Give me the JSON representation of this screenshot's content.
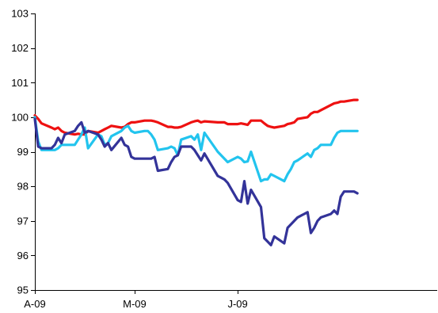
{
  "chart_data": {
    "type": "line",
    "title": "",
    "xlabel": "",
    "ylabel": "",
    "ylim": [
      95,
      103
    ],
    "yticks": [
      95,
      96,
      97,
      98,
      99,
      100,
      101,
      102,
      103
    ],
    "xlim": [
      "2009-04-01",
      "2009-07-31"
    ],
    "x_ticks": [
      {
        "date": "2009-04-01",
        "label": "A-09"
      },
      {
        "date": "2009-05-01",
        "label": "M-09"
      },
      {
        "date": "2009-06-01",
        "label": "J-09"
      }
    ],
    "grid": false,
    "legend": "none",
    "series": [
      {
        "color": "#ee1111",
        "points": [
          [
            "2009-04-01",
            100.05
          ],
          [
            "2009-04-02",
            99.95
          ],
          [
            "2009-04-03",
            99.82
          ],
          [
            "2009-04-06",
            99.7
          ],
          [
            "2009-04-07",
            99.65
          ],
          [
            "2009-04-08",
            99.7
          ],
          [
            "2009-04-09",
            99.6
          ],
          [
            "2009-04-10",
            99.55
          ],
          [
            "2009-04-13",
            99.5
          ],
          [
            "2009-04-14",
            99.52
          ],
          [
            "2009-04-15",
            99.5
          ],
          [
            "2009-04-16",
            99.5
          ],
          [
            "2009-04-17",
            99.6
          ],
          [
            "2009-04-20",
            99.55
          ],
          [
            "2009-04-21",
            99.6
          ],
          [
            "2009-04-22",
            99.65
          ],
          [
            "2009-04-23",
            99.7
          ],
          [
            "2009-04-24",
            99.75
          ],
          [
            "2009-04-27",
            99.7
          ],
          [
            "2009-04-28",
            99.72
          ],
          [
            "2009-04-29",
            99.8
          ],
          [
            "2009-04-30",
            99.85
          ],
          [
            "2009-05-01",
            99.85
          ],
          [
            "2009-05-04",
            99.9
          ],
          [
            "2009-05-05",
            99.9
          ],
          [
            "2009-05-06",
            99.9
          ],
          [
            "2009-05-07",
            99.88
          ],
          [
            "2009-05-08",
            99.85
          ],
          [
            "2009-05-11",
            99.72
          ],
          [
            "2009-05-12",
            99.72
          ],
          [
            "2009-05-13",
            99.7
          ],
          [
            "2009-05-14",
            99.7
          ],
          [
            "2009-05-15",
            99.72
          ],
          [
            "2009-05-18",
            99.85
          ],
          [
            "2009-05-19",
            99.88
          ],
          [
            "2009-05-20",
            99.9
          ],
          [
            "2009-05-21",
            99.85
          ],
          [
            "2009-05-22",
            99.88
          ],
          [
            "2009-05-26",
            99.85
          ],
          [
            "2009-05-27",
            99.85
          ],
          [
            "2009-05-28",
            99.85
          ],
          [
            "2009-05-29",
            99.8
          ],
          [
            "2009-06-01",
            99.8
          ],
          [
            "2009-06-02",
            99.82
          ],
          [
            "2009-06-03",
            99.8
          ],
          [
            "2009-06-04",
            99.78
          ],
          [
            "2009-06-05",
            99.9
          ],
          [
            "2009-06-08",
            99.9
          ],
          [
            "2009-06-09",
            99.82
          ],
          [
            "2009-06-10",
            99.75
          ],
          [
            "2009-06-11",
            99.72
          ],
          [
            "2009-06-12",
            99.7
          ],
          [
            "2009-06-15",
            99.75
          ],
          [
            "2009-06-16",
            99.8
          ],
          [
            "2009-06-17",
            99.82
          ],
          [
            "2009-06-18",
            99.85
          ],
          [
            "2009-06-19",
            99.95
          ],
          [
            "2009-06-22",
            100.0
          ],
          [
            "2009-06-23",
            100.1
          ],
          [
            "2009-06-24",
            100.15
          ],
          [
            "2009-06-25",
            100.15
          ],
          [
            "2009-06-26",
            100.2
          ],
          [
            "2009-06-29",
            100.35
          ],
          [
            "2009-06-30",
            100.4
          ],
          [
            "2009-07-01",
            100.42
          ],
          [
            "2009-07-02",
            100.45
          ],
          [
            "2009-07-03",
            100.45
          ],
          [
            "2009-07-06",
            100.5
          ],
          [
            "2009-07-07",
            100.5
          ]
        ]
      },
      {
        "color": "#22c4ee",
        "points": [
          [
            "2009-04-01",
            100.0
          ],
          [
            "2009-04-02",
            99.3
          ],
          [
            "2009-04-03",
            99.05
          ],
          [
            "2009-04-06",
            99.05
          ],
          [
            "2009-04-07",
            99.05
          ],
          [
            "2009-04-08",
            99.1
          ],
          [
            "2009-04-09",
            99.2
          ],
          [
            "2009-04-10",
            99.2
          ],
          [
            "2009-04-13",
            99.2
          ],
          [
            "2009-04-14",
            99.35
          ],
          [
            "2009-04-15",
            99.5
          ],
          [
            "2009-04-16",
            99.7
          ],
          [
            "2009-04-17",
            99.1
          ],
          [
            "2009-04-20",
            99.5
          ],
          [
            "2009-04-21",
            99.45
          ],
          [
            "2009-04-22",
            99.2
          ],
          [
            "2009-04-23",
            99.25
          ],
          [
            "2009-04-24",
            99.45
          ],
          [
            "2009-04-27",
            99.6
          ],
          [
            "2009-04-28",
            99.7
          ],
          [
            "2009-04-29",
            99.75
          ],
          [
            "2009-04-30",
            99.6
          ],
          [
            "2009-05-01",
            99.55
          ],
          [
            "2009-05-04",
            99.6
          ],
          [
            "2009-05-05",
            99.6
          ],
          [
            "2009-05-06",
            99.5
          ],
          [
            "2009-05-07",
            99.35
          ],
          [
            "2009-05-08",
            99.05
          ],
          [
            "2009-05-11",
            99.1
          ],
          [
            "2009-05-12",
            99.15
          ],
          [
            "2009-05-13",
            99.1
          ],
          [
            "2009-05-14",
            98.9
          ],
          [
            "2009-05-15",
            99.35
          ],
          [
            "2009-05-18",
            99.45
          ],
          [
            "2009-05-19",
            99.35
          ],
          [
            "2009-05-20",
            99.5
          ],
          [
            "2009-05-21",
            99.05
          ],
          [
            "2009-05-22",
            99.55
          ],
          [
            "2009-05-26",
            99.0
          ],
          [
            "2009-05-27",
            98.9
          ],
          [
            "2009-05-28",
            98.8
          ],
          [
            "2009-05-29",
            98.7
          ],
          [
            "2009-06-01",
            98.85
          ],
          [
            "2009-06-02",
            98.8
          ],
          [
            "2009-06-03",
            98.7
          ],
          [
            "2009-06-04",
            98.72
          ],
          [
            "2009-06-05",
            99.0
          ],
          [
            "2009-06-08",
            98.15
          ],
          [
            "2009-06-09",
            98.2
          ],
          [
            "2009-06-10",
            98.2
          ],
          [
            "2009-06-11",
            98.35
          ],
          [
            "2009-06-12",
            98.3
          ],
          [
            "2009-06-15",
            98.15
          ],
          [
            "2009-06-16",
            98.35
          ],
          [
            "2009-06-17",
            98.5
          ],
          [
            "2009-06-18",
            98.7
          ],
          [
            "2009-06-19",
            98.75
          ],
          [
            "2009-06-22",
            98.95
          ],
          [
            "2009-06-23",
            98.85
          ],
          [
            "2009-06-24",
            99.05
          ],
          [
            "2009-06-25",
            99.1
          ],
          [
            "2009-06-26",
            99.2
          ],
          [
            "2009-06-29",
            99.2
          ],
          [
            "2009-06-30",
            99.4
          ],
          [
            "2009-07-01",
            99.55
          ],
          [
            "2009-07-02",
            99.6
          ],
          [
            "2009-07-03",
            99.6
          ],
          [
            "2009-07-06",
            99.6
          ],
          [
            "2009-07-07",
            99.6
          ]
        ]
      },
      {
        "color": "#333399",
        "points": [
          [
            "2009-04-01",
            99.95
          ],
          [
            "2009-04-02",
            99.15
          ],
          [
            "2009-04-03",
            99.1
          ],
          [
            "2009-04-06",
            99.1
          ],
          [
            "2009-04-07",
            99.2
          ],
          [
            "2009-04-08",
            99.4
          ],
          [
            "2009-04-09",
            99.25
          ],
          [
            "2009-04-10",
            99.5
          ],
          [
            "2009-04-13",
            99.6
          ],
          [
            "2009-04-14",
            99.75
          ],
          [
            "2009-04-15",
            99.85
          ],
          [
            "2009-04-16",
            99.55
          ],
          [
            "2009-04-17",
            99.6
          ],
          [
            "2009-04-20",
            99.5
          ],
          [
            "2009-04-21",
            99.35
          ],
          [
            "2009-04-22",
            99.15
          ],
          [
            "2009-04-23",
            99.25
          ],
          [
            "2009-04-24",
            99.05
          ],
          [
            "2009-04-27",
            99.4
          ],
          [
            "2009-04-28",
            99.2
          ],
          [
            "2009-04-29",
            99.15
          ],
          [
            "2009-04-30",
            98.85
          ],
          [
            "2009-05-01",
            98.8
          ],
          [
            "2009-05-04",
            98.8
          ],
          [
            "2009-05-05",
            98.8
          ],
          [
            "2009-05-06",
            98.8
          ],
          [
            "2009-05-07",
            98.85
          ],
          [
            "2009-05-08",
            98.45
          ],
          [
            "2009-05-11",
            98.5
          ],
          [
            "2009-05-12",
            98.7
          ],
          [
            "2009-05-13",
            98.85
          ],
          [
            "2009-05-14",
            98.9
          ],
          [
            "2009-05-15",
            99.15
          ],
          [
            "2009-05-18",
            99.15
          ],
          [
            "2009-05-19",
            99.05
          ],
          [
            "2009-05-20",
            98.9
          ],
          [
            "2009-05-21",
            98.75
          ],
          [
            "2009-05-22",
            98.95
          ],
          [
            "2009-05-26",
            98.3
          ],
          [
            "2009-05-27",
            98.25
          ],
          [
            "2009-05-28",
            98.2
          ],
          [
            "2009-05-29",
            98.1
          ],
          [
            "2009-06-01",
            97.6
          ],
          [
            "2009-06-02",
            97.55
          ],
          [
            "2009-06-03",
            98.15
          ],
          [
            "2009-06-04",
            97.5
          ],
          [
            "2009-06-05",
            97.9
          ],
          [
            "2009-06-08",
            97.4
          ],
          [
            "2009-06-09",
            96.5
          ],
          [
            "2009-06-10",
            96.4
          ],
          [
            "2009-06-11",
            96.3
          ],
          [
            "2009-06-12",
            96.55
          ],
          [
            "2009-06-15",
            96.35
          ],
          [
            "2009-06-16",
            96.8
          ],
          [
            "2009-06-17",
            96.9
          ],
          [
            "2009-06-18",
            97.0
          ],
          [
            "2009-06-19",
            97.1
          ],
          [
            "2009-06-22",
            97.25
          ],
          [
            "2009-06-23",
            96.65
          ],
          [
            "2009-06-24",
            96.8
          ],
          [
            "2009-06-25",
            97.0
          ],
          [
            "2009-06-26",
            97.1
          ],
          [
            "2009-06-29",
            97.2
          ],
          [
            "2009-06-30",
            97.3
          ],
          [
            "2009-07-01",
            97.2
          ],
          [
            "2009-07-02",
            97.7
          ],
          [
            "2009-07-03",
            97.85
          ],
          [
            "2009-07-06",
            97.85
          ],
          [
            "2009-07-07",
            97.8
          ]
        ]
      }
    ]
  }
}
